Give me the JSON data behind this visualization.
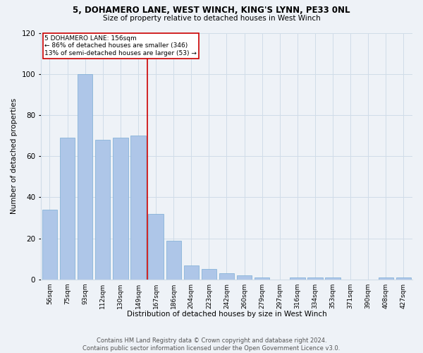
{
  "title1": "5, DOHAMERO LANE, WEST WINCH, KING'S LYNN, PE33 0NL",
  "title2": "Size of property relative to detached houses in West Winch",
  "xlabel": "Distribution of detached houses by size in West Winch",
  "ylabel": "Number of detached properties",
  "bar_labels": [
    "56sqm",
    "75sqm",
    "93sqm",
    "112sqm",
    "130sqm",
    "149sqm",
    "167sqm",
    "186sqm",
    "204sqm",
    "223sqm",
    "242sqm",
    "260sqm",
    "279sqm",
    "297sqm",
    "316sqm",
    "334sqm",
    "353sqm",
    "371sqm",
    "390sqm",
    "408sqm",
    "427sqm"
  ],
  "bar_values": [
    34,
    69,
    100,
    68,
    69,
    70,
    32,
    19,
    7,
    5,
    3,
    2,
    1,
    0,
    1,
    1,
    1,
    0,
    0,
    1,
    1
  ],
  "bar_color": "#aec6e8",
  "bar_edge_color": "#7aadd4",
  "property_line_x": 6,
  "property_line_label": "5 DOHAMERO LANE: 156sqm",
  "annotation_line1": "← 86% of detached houses are smaller (346)",
  "annotation_line2": "13% of semi-detached houses are larger (53) →",
  "annotation_box_color": "#ffffff",
  "annotation_box_edge": "#cc0000",
  "line_color": "#cc0000",
  "ylim": [
    0,
    120
  ],
  "grid_color": "#d0dce8",
  "bg_color": "#eef2f7",
  "footer": "Contains HM Land Registry data © Crown copyright and database right 2024.\nContains public sector information licensed under the Open Government Licence v3.0."
}
